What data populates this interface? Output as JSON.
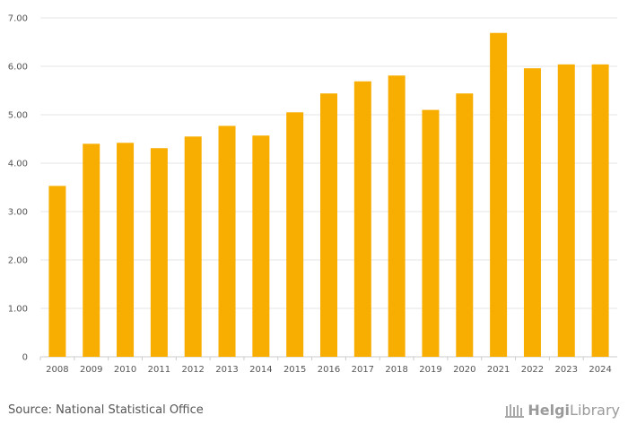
{
  "chart_data": {
    "type": "bar",
    "categories": [
      "2008",
      "2009",
      "2010",
      "2011",
      "2012",
      "2013",
      "2014",
      "2015",
      "2016",
      "2017",
      "2018",
      "2019",
      "2020",
      "2021",
      "2022",
      "2023",
      "2024"
    ],
    "values": [
      3.53,
      4.4,
      4.42,
      4.31,
      4.55,
      4.77,
      4.57,
      5.05,
      5.44,
      5.69,
      5.81,
      5.1,
      5.44,
      6.69,
      5.96,
      6.04,
      6.04
    ],
    "y_ticks": [
      "0",
      "1.00",
      "2.00",
      "3.00",
      "4.00",
      "5.00",
      "6.00",
      "7.00"
    ],
    "ylim": [
      0,
      7
    ],
    "title": "",
    "xlabel": "",
    "ylabel": "",
    "grid": true,
    "bar_color": "#f7ae00",
    "grid_color": "#e6e6e6"
  },
  "footer": {
    "source": "Source: National Statistical Office",
    "logo_bold": "Helgi",
    "logo_rest": "Library"
  }
}
